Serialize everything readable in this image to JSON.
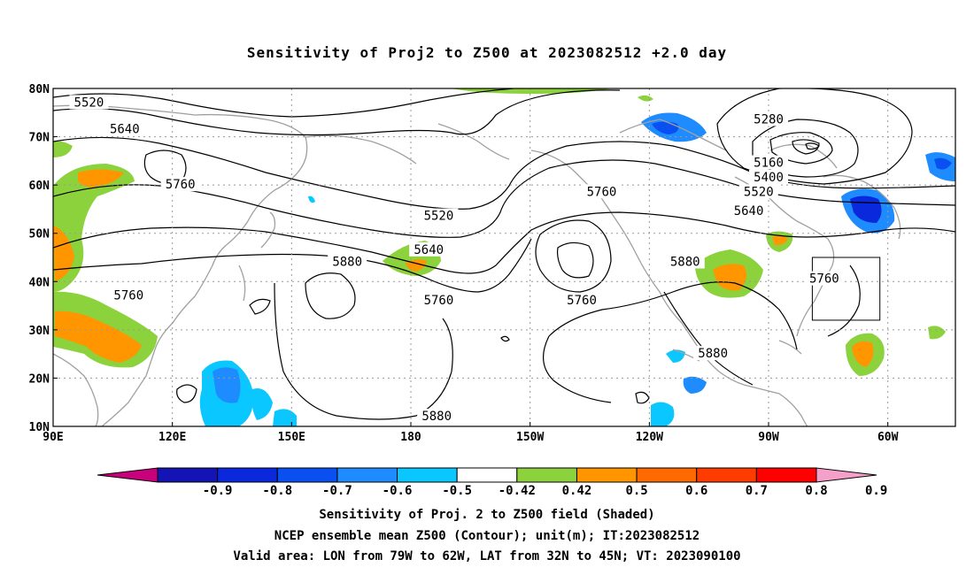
{
  "title": "Sensitivity of Proj2 to Z500 at 2023082512 +2.0 day",
  "lat_labels": [
    "80N",
    "70N",
    "60N",
    "50N",
    "40N",
    "30N",
    "20N",
    "10N"
  ],
  "lon_labels": [
    "90E",
    "120E",
    "150E",
    "180",
    "150W",
    "120W",
    "90W",
    "60W"
  ],
  "contour_labels": [
    {
      "text": "5520",
      "lon": 99,
      "lat": 77
    },
    {
      "text": "5640",
      "lon": 108,
      "lat": 71.5
    },
    {
      "text": "5760",
      "lon": 122,
      "lat": 60
    },
    {
      "text": "5760",
      "lon": 109,
      "lat": 37
    },
    {
      "text": "5880",
      "lon": 164,
      "lat": 44
    },
    {
      "text": "5520",
      "lon": -173,
      "lat": 53.5
    },
    {
      "text": "5640",
      "lon": -175.5,
      "lat": 46.5
    },
    {
      "text": "5760",
      "lon": -173,
      "lat": 36
    },
    {
      "text": "5760",
      "lon": -137,
      "lat": 36
    },
    {
      "text": "5760",
      "lon": -132,
      "lat": 58.5
    },
    {
      "text": "5880",
      "lon": -173.5,
      "lat": 12
    },
    {
      "text": "5880",
      "lon": -111,
      "lat": 44
    },
    {
      "text": "5880",
      "lon": -104,
      "lat": 25
    },
    {
      "text": "5280",
      "lon": -90,
      "lat": 73.5
    },
    {
      "text": "5160",
      "lon": -90,
      "lat": 64.5
    },
    {
      "text": "5400",
      "lon": -90,
      "lat": 61.5
    },
    {
      "text": "5520",
      "lon": -92.5,
      "lat": 58.5
    },
    {
      "text": "5640",
      "lon": -95,
      "lat": 54.5
    },
    {
      "text": "5760",
      "lon": -76,
      "lat": 40.5
    }
  ],
  "valid_area": {
    "lon_range": [
      -79,
      -62
    ],
    "lat_range": [
      32,
      45
    ]
  },
  "colorbar": {
    "colors": [
      "#c8007c",
      "#1414b4",
      "#0a28dc",
      "#0a50f0",
      "#1e8cff",
      "#0ac8ff",
      "#ffffff",
      "#8cd23c",
      "#ff9600",
      "#ff6a00",
      "#ff3c00",
      "#ff0000",
      "#f5a0c8"
    ],
    "labels": [
      "-0.9",
      "-0.8",
      "-0.7",
      "-0.6",
      "-0.5",
      "-0.42",
      "0.42",
      "0.5",
      "0.6",
      "0.7",
      "0.8",
      "0.9"
    ]
  },
  "captions": {
    "line1": "Sensitivity of Proj. 2 to Z500 field (Shaded)",
    "line2": "NCEP ensemble mean Z500 (Contour); unit(m); IT:2023082512",
    "line3": "Valid area: LON from 79W to 62W, LAT from 32N to 45N; VT: 2023090100"
  }
}
